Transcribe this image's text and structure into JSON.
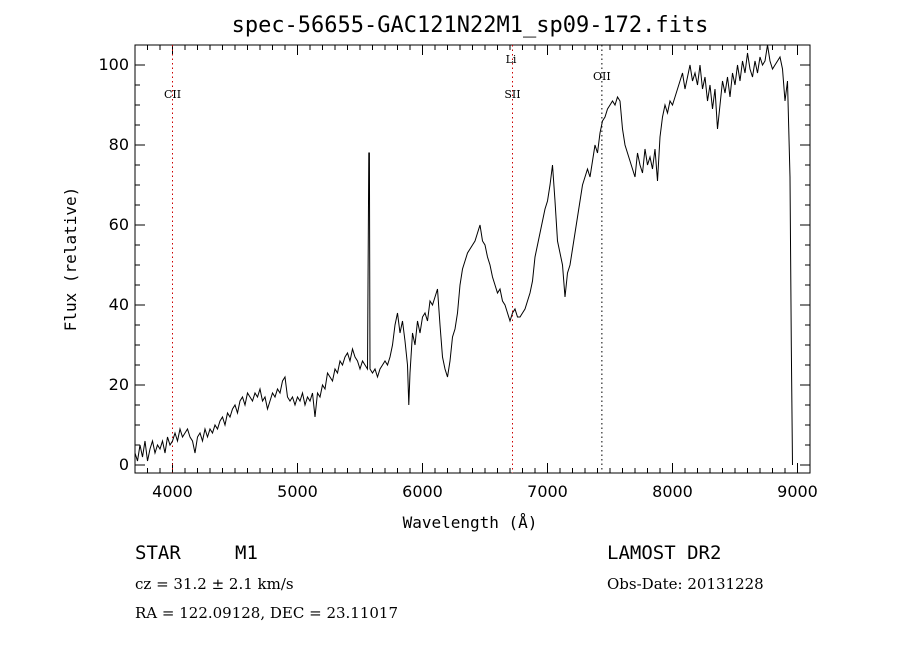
{
  "chart_data": {
    "type": "line",
    "title": "spec-56655-GAC121N22M1_sp09-172.fits",
    "xlabel": "Wavelength (Å)",
    "ylabel": "Flux (relative)",
    "xlim": [
      3700,
      9100
    ],
    "ylim": [
      -2,
      105
    ],
    "x_ticks": [
      4000,
      5000,
      6000,
      7000,
      8000,
      9000
    ],
    "x_tick_labels": [
      "4000",
      "5000",
      "6000",
      "7000",
      "8000",
      "9000"
    ],
    "y_ticks": [
      0,
      20,
      40,
      60,
      80,
      100
    ],
    "y_tick_labels": [
      "0",
      "20",
      "40",
      "60",
      "80",
      "100"
    ],
    "grid": false,
    "series": [
      {
        "points": [
          [
            3700,
            3
          ],
          [
            3720,
            1
          ],
          [
            3740,
            5
          ],
          [
            3760,
            2
          ],
          [
            3780,
            6
          ],
          [
            3800,
            1
          ],
          [
            3820,
            4
          ],
          [
            3840,
            6
          ],
          [
            3860,
            3
          ],
          [
            3880,
            5
          ],
          [
            3900,
            4
          ],
          [
            3920,
            6
          ],
          [
            3940,
            3
          ],
          [
            3960,
            7
          ],
          [
            3980,
            5
          ],
          [
            4000,
            6
          ],
          [
            4020,
            8
          ],
          [
            4040,
            6
          ],
          [
            4060,
            9
          ],
          [
            4080,
            7
          ],
          [
            4100,
            8
          ],
          [
            4120,
            9
          ],
          [
            4140,
            7
          ],
          [
            4160,
            6
          ],
          [
            4180,
            3
          ],
          [
            4200,
            7
          ],
          [
            4220,
            8
          ],
          [
            4240,
            6
          ],
          [
            4260,
            9
          ],
          [
            4280,
            7
          ],
          [
            4300,
            9
          ],
          [
            4320,
            8
          ],
          [
            4340,
            10
          ],
          [
            4360,
            9
          ],
          [
            4380,
            11
          ],
          [
            4400,
            12
          ],
          [
            4420,
            10
          ],
          [
            4440,
            13
          ],
          [
            4460,
            12
          ],
          [
            4480,
            14
          ],
          [
            4500,
            15
          ],
          [
            4520,
            13
          ],
          [
            4540,
            16
          ],
          [
            4560,
            17
          ],
          [
            4580,
            15
          ],
          [
            4600,
            18
          ],
          [
            4620,
            17
          ],
          [
            4640,
            16
          ],
          [
            4660,
            18
          ],
          [
            4680,
            17
          ],
          [
            4700,
            19
          ],
          [
            4720,
            16
          ],
          [
            4740,
            17
          ],
          [
            4760,
            14
          ],
          [
            4780,
            16
          ],
          [
            4800,
            18
          ],
          [
            4820,
            17
          ],
          [
            4840,
            19
          ],
          [
            4860,
            18
          ],
          [
            4880,
            21
          ],
          [
            4900,
            22
          ],
          [
            4920,
            17
          ],
          [
            4940,
            16
          ],
          [
            4960,
            17
          ],
          [
            4980,
            15
          ],
          [
            5000,
            17
          ],
          [
            5020,
            16
          ],
          [
            5040,
            18
          ],
          [
            5060,
            15
          ],
          [
            5080,
            17
          ],
          [
            5100,
            16
          ],
          [
            5120,
            18
          ],
          [
            5140,
            12
          ],
          [
            5160,
            18
          ],
          [
            5180,
            17
          ],
          [
            5200,
            20
          ],
          [
            5220,
            19
          ],
          [
            5240,
            23
          ],
          [
            5260,
            22
          ],
          [
            5280,
            21
          ],
          [
            5300,
            24
          ],
          [
            5320,
            23
          ],
          [
            5340,
            26
          ],
          [
            5360,
            25
          ],
          [
            5380,
            27
          ],
          [
            5400,
            28
          ],
          [
            5420,
            26
          ],
          [
            5440,
            29
          ],
          [
            5460,
            27
          ],
          [
            5480,
            26
          ],
          [
            5500,
            24
          ],
          [
            5520,
            26
          ],
          [
            5540,
            25
          ],
          [
            5560,
            24
          ],
          [
            5570,
            78
          ],
          [
            5575,
            78
          ],
          [
            5580,
            24
          ],
          [
            5600,
            23
          ],
          [
            5620,
            24
          ],
          [
            5640,
            22
          ],
          [
            5660,
            24
          ],
          [
            5680,
            25
          ],
          [
            5700,
            26
          ],
          [
            5720,
            25
          ],
          [
            5740,
            27
          ],
          [
            5760,
            30
          ],
          [
            5780,
            35
          ],
          [
            5800,
            38
          ],
          [
            5820,
            33
          ],
          [
            5840,
            36
          ],
          [
            5860,
            31
          ],
          [
            5880,
            25
          ],
          [
            5890,
            15
          ],
          [
            5900,
            23
          ],
          [
            5920,
            33
          ],
          [
            5940,
            30
          ],
          [
            5960,
            36
          ],
          [
            5980,
            33
          ],
          [
            6000,
            37
          ],
          [
            6020,
            38
          ],
          [
            6040,
            36
          ],
          [
            6060,
            41
          ],
          [
            6080,
            40
          ],
          [
            6100,
            42
          ],
          [
            6120,
            44
          ],
          [
            6140,
            35
          ],
          [
            6160,
            27
          ],
          [
            6180,
            24
          ],
          [
            6200,
            22
          ],
          [
            6220,
            26
          ],
          [
            6240,
            32
          ],
          [
            6260,
            34
          ],
          [
            6280,
            38
          ],
          [
            6300,
            45
          ],
          [
            6320,
            49
          ],
          [
            6340,
            51
          ],
          [
            6360,
            53
          ],
          [
            6380,
            54
          ],
          [
            6400,
            55
          ],
          [
            6420,
            56
          ],
          [
            6440,
            58
          ],
          [
            6460,
            60
          ],
          [
            6480,
            56
          ],
          [
            6500,
            55
          ],
          [
            6520,
            52
          ],
          [
            6540,
            50
          ],
          [
            6560,
            47
          ],
          [
            6580,
            45
          ],
          [
            6600,
            43
          ],
          [
            6620,
            44
          ],
          [
            6640,
            41
          ],
          [
            6660,
            40
          ],
          [
            6680,
            38
          ],
          [
            6700,
            36
          ],
          [
            6720,
            38
          ],
          [
            6740,
            39
          ],
          [
            6760,
            37
          ],
          [
            6780,
            37
          ],
          [
            6800,
            38
          ],
          [
            6820,
            39
          ],
          [
            6840,
            41
          ],
          [
            6860,
            43
          ],
          [
            6880,
            46
          ],
          [
            6900,
            52
          ],
          [
            6920,
            55
          ],
          [
            6940,
            58
          ],
          [
            6960,
            61
          ],
          [
            6980,
            64
          ],
          [
            7000,
            66
          ],
          [
            7020,
            70
          ],
          [
            7040,
            75
          ],
          [
            7060,
            66
          ],
          [
            7080,
            56
          ],
          [
            7100,
            53
          ],
          [
            7120,
            50
          ],
          [
            7140,
            42
          ],
          [
            7160,
            48
          ],
          [
            7180,
            50
          ],
          [
            7200,
            54
          ],
          [
            7220,
            58
          ],
          [
            7240,
            62
          ],
          [
            7260,
            66
          ],
          [
            7280,
            70
          ],
          [
            7300,
            72
          ],
          [
            7320,
            74
          ],
          [
            7340,
            72
          ],
          [
            7360,
            76
          ],
          [
            7380,
            80
          ],
          [
            7400,
            78
          ],
          [
            7420,
            83
          ],
          [
            7440,
            86
          ],
          [
            7460,
            87
          ],
          [
            7480,
            89
          ],
          [
            7500,
            90
          ],
          [
            7520,
            91
          ],
          [
            7540,
            90
          ],
          [
            7560,
            92
          ],
          [
            7580,
            91
          ],
          [
            7600,
            84
          ],
          [
            7620,
            80
          ],
          [
            7640,
            78
          ],
          [
            7660,
            76
          ],
          [
            7680,
            74
          ],
          [
            7700,
            72
          ],
          [
            7720,
            78
          ],
          [
            7740,
            75
          ],
          [
            7760,
            73
          ],
          [
            7780,
            79
          ],
          [
            7800,
            75
          ],
          [
            7820,
            77
          ],
          [
            7840,
            74
          ],
          [
            7860,
            79
          ],
          [
            7880,
            71
          ],
          [
            7900,
            82
          ],
          [
            7920,
            87
          ],
          [
            7940,
            90
          ],
          [
            7960,
            88
          ],
          [
            7980,
            91
          ],
          [
            8000,
            90
          ],
          [
            8020,
            92
          ],
          [
            8040,
            94
          ],
          [
            8060,
            96
          ],
          [
            8080,
            98
          ],
          [
            8100,
            94
          ],
          [
            8120,
            97
          ],
          [
            8140,
            100
          ],
          [
            8160,
            96
          ],
          [
            8180,
            98
          ],
          [
            8200,
            95
          ],
          [
            8220,
            100
          ],
          [
            8240,
            94
          ],
          [
            8260,
            97
          ],
          [
            8280,
            91
          ],
          [
            8300,
            95
          ],
          [
            8320,
            89
          ],
          [
            8340,
            94
          ],
          [
            8360,
            84
          ],
          [
            8380,
            90
          ],
          [
            8400,
            96
          ],
          [
            8420,
            93
          ],
          [
            8440,
            97
          ],
          [
            8460,
            92
          ],
          [
            8480,
            98
          ],
          [
            8500,
            95
          ],
          [
            8520,
            100
          ],
          [
            8540,
            96
          ],
          [
            8560,
            101
          ],
          [
            8580,
            98
          ],
          [
            8600,
            103
          ],
          [
            8620,
            99
          ],
          [
            8640,
            97
          ],
          [
            8660,
            101
          ],
          [
            8680,
            98
          ],
          [
            8700,
            102
          ],
          [
            8720,
            100
          ],
          [
            8740,
            101
          ],
          [
            8760,
            105
          ],
          [
            8780,
            101
          ],
          [
            8800,
            99
          ],
          [
            8820,
            100
          ],
          [
            8840,
            101
          ],
          [
            8860,
            102
          ],
          [
            8880,
            99
          ],
          [
            8900,
            91
          ],
          [
            8920,
            96
          ],
          [
            8940,
            72
          ],
          [
            8950,
            30
          ],
          [
            8960,
            0
          ]
        ]
      }
    ],
    "lines": [
      {
        "label": "CII",
        "x": 4000,
        "color": "#cc0000"
      },
      {
        "label": "Li",
        "x": 6708,
        "color": "#cc0000"
      },
      {
        "label": "SII",
        "x": 6720,
        "color": "#cc0000"
      },
      {
        "label": "OII",
        "x": 7435,
        "color": "#000000"
      }
    ],
    "info": {
      "object_type": "STAR",
      "subclass": "M1",
      "survey": "LAMOST DR2",
      "cz": "cz = 31.2 ± 2.1 km/s",
      "obs_date": "Obs-Date: 20131228",
      "coords": "RA = 122.09128, DEC =  23.11017"
    }
  }
}
